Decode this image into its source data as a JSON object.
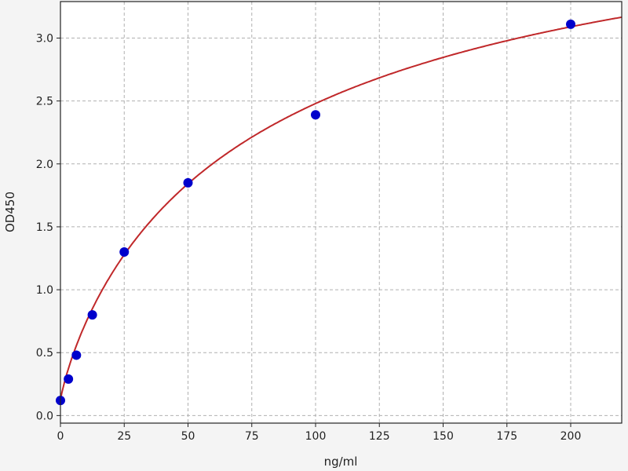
{
  "chart_data": {
    "type": "scatter",
    "title": "",
    "xlabel": "ng/ml",
    "ylabel": "OD450",
    "xlim": [
      0,
      220
    ],
    "ylim": [
      -0.06,
      3.29
    ],
    "xticks": [
      0,
      25,
      50,
      75,
      100,
      125,
      150,
      175,
      200
    ],
    "yticks": [
      0.0,
      0.5,
      1.0,
      1.5,
      2.0,
      2.5,
      3.0
    ],
    "grid": true,
    "series": [
      {
        "kind": "points",
        "color": "#0000cc",
        "x": [
          0,
          3.125,
          6.25,
          12.5,
          25,
          50,
          100,
          200
        ],
        "y": [
          0.12,
          0.29,
          0.48,
          0.8,
          1.3,
          1.85,
          2.39,
          3.11
        ]
      },
      {
        "kind": "fit-curve",
        "color": "#c0282a",
        "model": "4PL",
        "params": {
          "a": 0.12,
          "b": 0.85,
          "c": 83.3,
          "d": 4.5
        }
      }
    ]
  }
}
